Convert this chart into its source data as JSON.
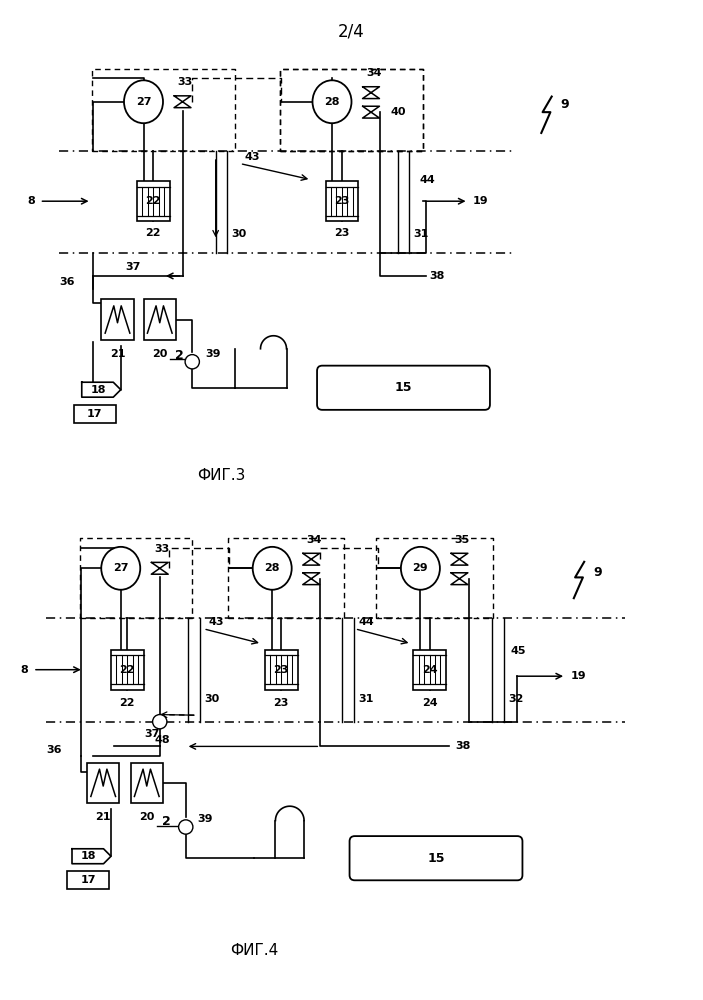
{
  "title": "2/4",
  "fig3_label": "ФИГ.3",
  "fig4_label": "ФИГ.4",
  "bg_color": "#ffffff"
}
